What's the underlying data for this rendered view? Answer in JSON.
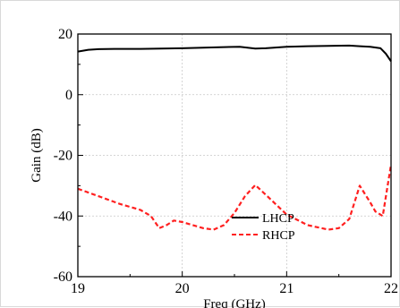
{
  "chart_data": {
    "type": "line",
    "title": "",
    "xlabel": "Freq (GHz)",
    "ylabel": "Gain (dB)",
    "xlim": [
      19,
      22
    ],
    "ylim": [
      -60,
      20
    ],
    "x_ticks": [
      19,
      20,
      21,
      22
    ],
    "y_ticks": [
      20,
      0,
      -20,
      -40,
      -60
    ],
    "x_tick_labels": [
      "19",
      "20",
      "21",
      "22"
    ],
    "y_tick_labels": [
      "20",
      "0",
      "-20",
      "-40",
      "-60"
    ],
    "grid": true,
    "legend_position": "bottom-center",
    "series": [
      {
        "name": "LHCP",
        "color": "#000000",
        "style": "solid",
        "x": [
          19.0,
          19.1,
          19.2,
          19.4,
          19.6,
          19.8,
          20.0,
          20.2,
          20.4,
          20.55,
          20.7,
          20.8,
          21.0,
          21.2,
          21.4,
          21.6,
          21.7,
          21.8,
          21.9,
          21.95,
          22.0
        ],
        "y": [
          14.2,
          14.8,
          15.0,
          15.1,
          15.1,
          15.2,
          15.3,
          15.5,
          15.7,
          15.8,
          15.2,
          15.3,
          15.8,
          16.0,
          16.1,
          16.2,
          16.0,
          15.8,
          15.3,
          13.5,
          11.0
        ]
      },
      {
        "name": "RHCP",
        "color": "#ff2020",
        "style": "dashed",
        "x": [
          19.0,
          19.2,
          19.4,
          19.6,
          19.7,
          19.78,
          19.85,
          19.92,
          20.0,
          20.2,
          20.3,
          20.4,
          20.5,
          20.6,
          20.7,
          20.8,
          21.0,
          21.2,
          21.4,
          21.5,
          21.6,
          21.7,
          21.8,
          21.85,
          21.92,
          22.0
        ],
        "y": [
          -31.0,
          -33.5,
          -36.0,
          -38.0,
          -40.0,
          -44.0,
          -43.0,
          -41.5,
          -42.0,
          -44.0,
          -44.5,
          -43.0,
          -39.0,
          -33.5,
          -29.8,
          -33.0,
          -39.5,
          -43.0,
          -44.5,
          -44.0,
          -41.0,
          -30.0,
          -35.5,
          -38.5,
          -40.0,
          -23.0
        ]
      }
    ]
  }
}
